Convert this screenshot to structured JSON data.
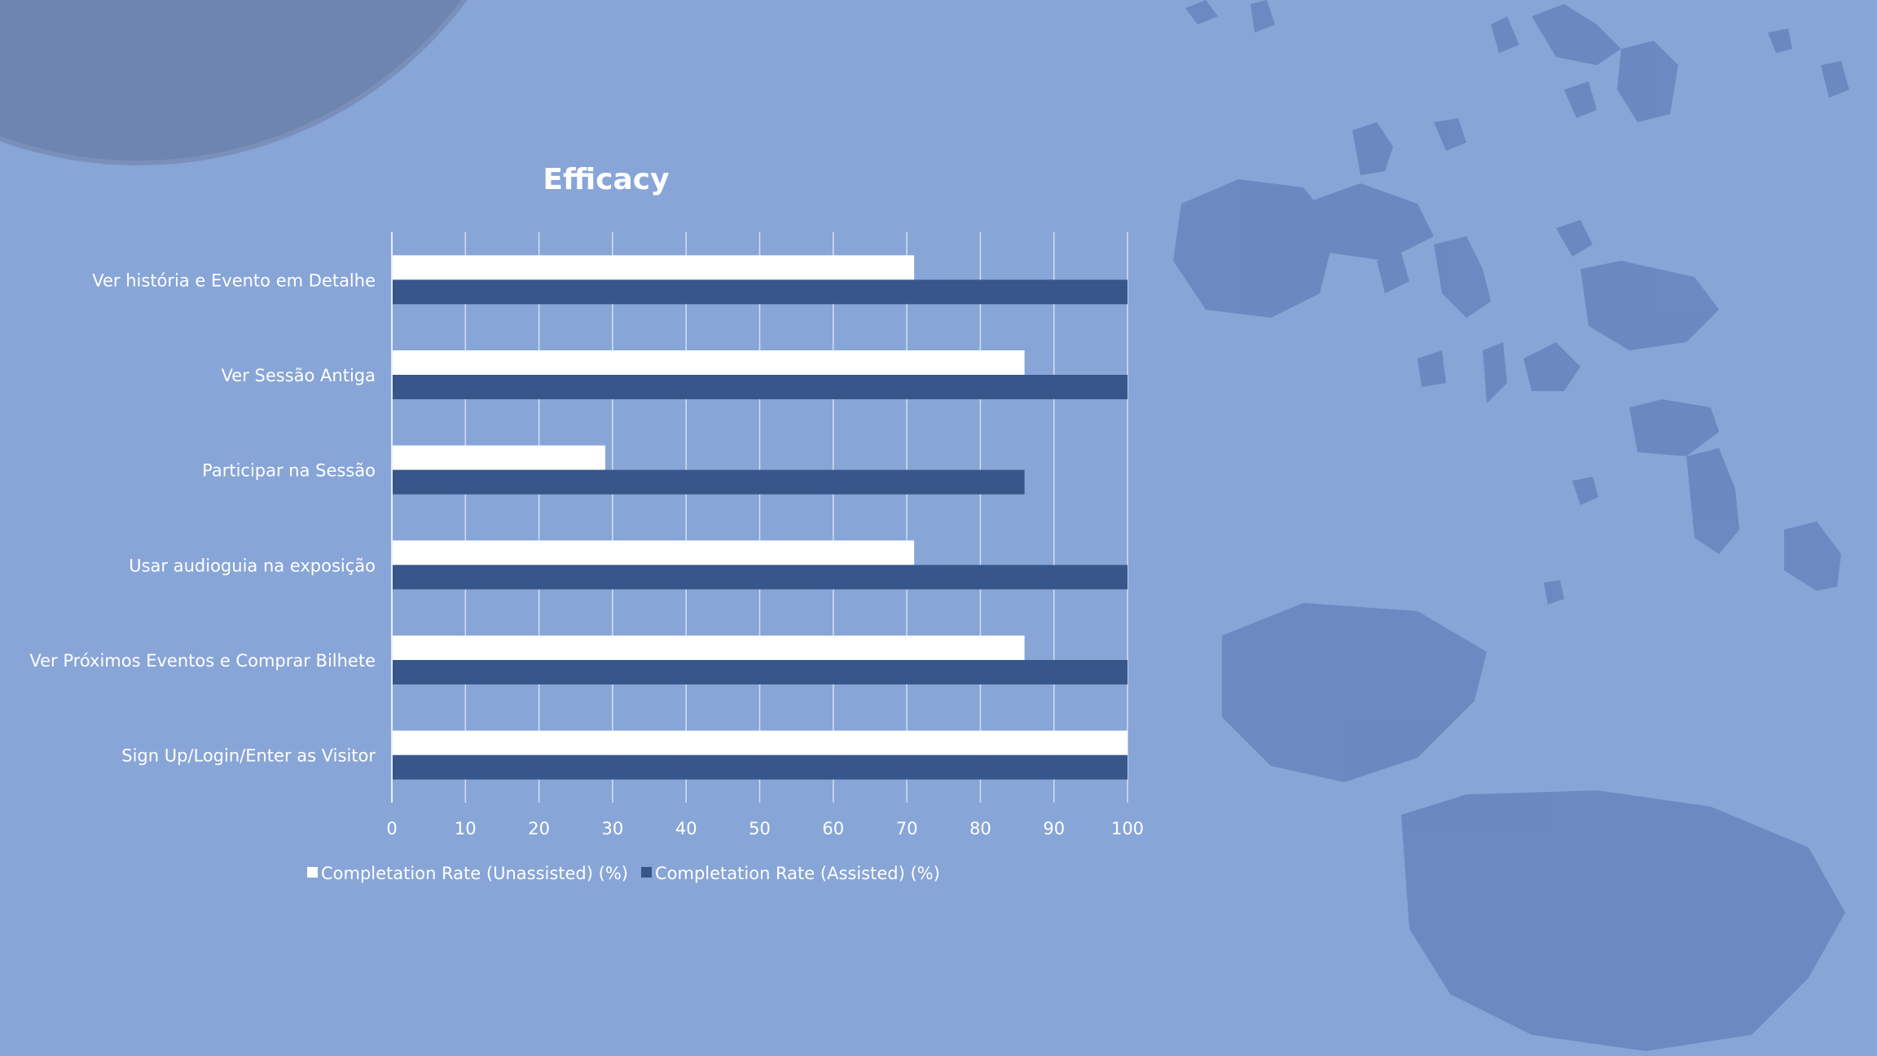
{
  "colors": {
    "background": "#88a5d7",
    "unassisted": "#ffffff",
    "assisted": "#37578a",
    "gridline": "#d5def0",
    "text": "#ffffff",
    "planet": "#6e85b0",
    "rocks": "#6685bd"
  },
  "chart_data": {
    "type": "bar",
    "orientation": "horizontal",
    "title": "Efficacy",
    "categories": [
      "Ver história e Evento em Detalhe",
      "Ver Sessão Antiga",
      "Participar na Sessão",
      "Usar audioguia na exposição",
      "Ver Próximos Eventos  e Comprar Bilhete",
      "Sign Up/Login/Enter as Visitor"
    ],
    "series": [
      {
        "name": "Completation Rate (Unassisted) (%)",
        "values": [
          71,
          86,
          29,
          71,
          86,
          100
        ]
      },
      {
        "name": "Completation Rate (Assisted) (%)",
        "values": [
          100,
          100,
          86,
          100,
          100,
          100
        ]
      }
    ],
    "xlim": [
      0,
      100
    ],
    "xticks": [
      0,
      10,
      20,
      30,
      40,
      50,
      60,
      70,
      80,
      90,
      100
    ],
    "grid": "vertical",
    "legend_position": "bottom"
  },
  "decor": {
    "planet_icon": "planet-corner",
    "rocks_icon": "asteroid-field"
  }
}
